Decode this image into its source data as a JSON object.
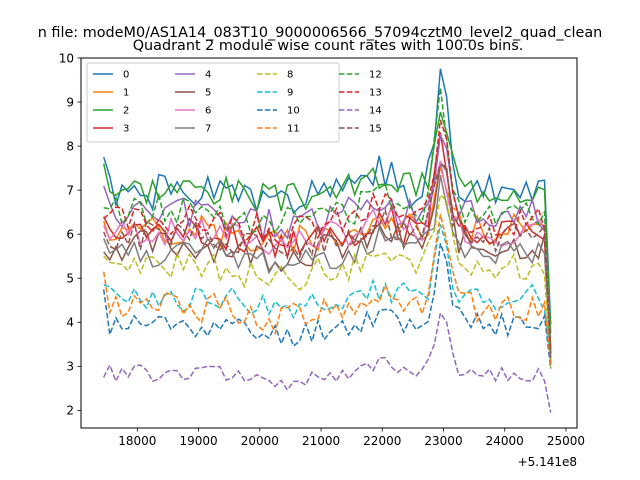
{
  "chart_data": {
    "type": "line",
    "suptitle": "n file: modeM0/AS1A14_083T10_9000006566_57094cztM0_level2_quad_clean",
    "title": "Quadrant 2 module wise count rates with 100.0s bins.",
    "xlabel": "",
    "ylabel": "",
    "x_offset_label": "+5.141e8",
    "xlim": [
      17080,
      25180
    ],
    "ylim": [
      1.6,
      10
    ],
    "xticks": [
      18000,
      19000,
      20000,
      21000,
      22000,
      23000,
      24000,
      25000
    ],
    "yticks": [
      2,
      3,
      4,
      5,
      6,
      7,
      8,
      9,
      10
    ],
    "x_start": 17450,
    "x_step": 100,
    "x_end": 24750,
    "legend_position": "upper-left",
    "series": [
      {
        "name": "0",
        "color": "#1f77b4",
        "dashed": false,
        "base": 6.95,
        "amp": 0.25,
        "peak": 2.6,
        "end": 3.0,
        "first": 7.75,
        "seed": 1
      },
      {
        "name": "1",
        "color": "#ff7f0e",
        "dashed": false,
        "base": 6.1,
        "amp": 0.22,
        "peak": 1.5,
        "end": 2.8,
        "first": 6.3,
        "seed": 2
      },
      {
        "name": "2",
        "color": "#2ca02c",
        "dashed": false,
        "base": 7.05,
        "amp": 0.22,
        "peak": 1.6,
        "end": 3.3,
        "first": 7.6,
        "seed": 3
      },
      {
        "name": "3",
        "color": "#d62728",
        "dashed": false,
        "base": 6.05,
        "amp": 0.22,
        "peak": 1.9,
        "end": 3.0,
        "first": 6.4,
        "seed": 4
      },
      {
        "name": "4",
        "color": "#9467bd",
        "dashed": false,
        "base": 6.45,
        "amp": 0.25,
        "peak": 1.7,
        "end": 3.0,
        "first": 7.1,
        "seed": 5
      },
      {
        "name": "5",
        "color": "#8c564b",
        "dashed": false,
        "base": 5.75,
        "amp": 0.22,
        "peak": 1.6,
        "end": 2.7,
        "first": 5.6,
        "seed": 6
      },
      {
        "name": "6",
        "color": "#e377c2",
        "dashed": false,
        "base": 6.05,
        "amp": 0.2,
        "peak": 1.6,
        "end": 2.6,
        "first": 6.2,
        "seed": 7
      },
      {
        "name": "7",
        "color": "#7f7f7f",
        "dashed": false,
        "base": 5.6,
        "amp": 0.22,
        "peak": 1.5,
        "end": 2.3,
        "first": 5.9,
        "seed": 8
      },
      {
        "name": "8",
        "color": "#bcbd22",
        "dashed": true,
        "base": 5.25,
        "amp": 0.2,
        "peak": 1.7,
        "end": 2.3,
        "first": 5.5,
        "seed": 9
      },
      {
        "name": "9",
        "color": "#17becf",
        "dashed": true,
        "base": 4.55,
        "amp": 0.2,
        "peak": 1.5,
        "end": 1.3,
        "first": 4.85,
        "seed": 10
      },
      {
        "name": "10",
        "color": "#1f77b4",
        "dashed": true,
        "base": 3.95,
        "amp": 0.18,
        "peak": 1.5,
        "end": 1.0,
        "first": 4.75,
        "seed": 11
      },
      {
        "name": "11",
        "color": "#ff7f0e",
        "dashed": true,
        "base": 4.35,
        "amp": 0.22,
        "peak": 2.0,
        "end": 1.3,
        "first": 5.15,
        "seed": 12
      },
      {
        "name": "12",
        "color": "#2ca02c",
        "dashed": true,
        "base": 6.55,
        "amp": 0.22,
        "peak": 2.4,
        "end": 3.2,
        "first": 6.6,
        "seed": 13
      },
      {
        "name": "13",
        "color": "#d62728",
        "dashed": true,
        "base": 6.3,
        "amp": 0.22,
        "peak": 2.3,
        "end": 3.0,
        "first": 6.35,
        "seed": 14
      },
      {
        "name": "14",
        "color": "#9467bd",
        "dashed": true,
        "base": 2.85,
        "amp": 0.12,
        "peak": 1.2,
        "end": 0.9,
        "first": 2.75,
        "seed": 15
      },
      {
        "name": "15",
        "color": "#8c564b",
        "dashed": true,
        "base": 5.95,
        "amp": 0.22,
        "peak": 1.8,
        "end": 2.8,
        "first": 6.05,
        "seed": 16
      }
    ]
  }
}
